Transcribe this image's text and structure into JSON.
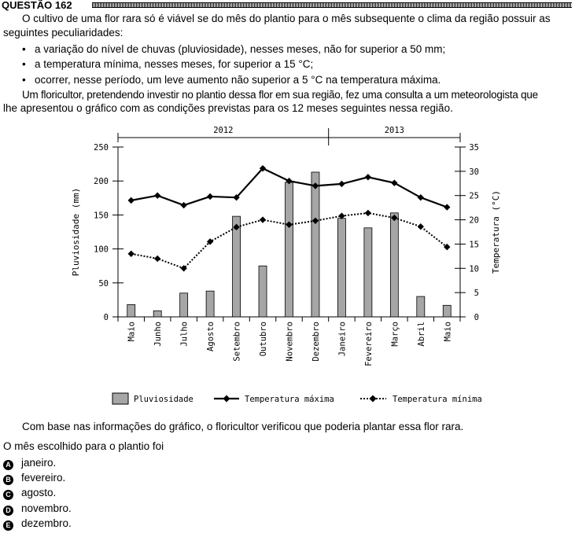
{
  "question": {
    "number": "QUESTÃO 162",
    "intro_line1": "O cultivo de uma flor rara só é viável se do mês do plantio para o mês subsequente o clima da região possuir as",
    "intro_line2": "seguintes peculiaridades:",
    "bullets": [
      "a variação do nível de chuvas (pluviosidade), nesses meses, não for superior a 50 mm;",
      "a temperatura mínima, nesses meses, for superior a 15 °C;",
      "ocorrer, nesse período, um leve aumento não superior a 5 °C na temperatura máxima."
    ],
    "para2_line1": "Um floricultor, pretendendo investir no plantio dessa flor em sua região, fez uma consulta a um meteorologista que",
    "para2_line2": "lhe apresentou o gráfico com as condições previstas para os 12 meses seguintes nessa região.",
    "conclusion": "Com base nas informações do gráfico, o floricultor verificou que poderia plantar essa flor rara.",
    "prompt": "O mês escolhido para o plantio foi",
    "options": [
      {
        "letter": "A",
        "text": "janeiro."
      },
      {
        "letter": "B",
        "text": "fevereiro."
      },
      {
        "letter": "C",
        "text": "agosto."
      },
      {
        "letter": "D",
        "text": "novembro."
      },
      {
        "letter": "E",
        "text": "dezembro."
      }
    ]
  },
  "chart_data": {
    "type": "bar",
    "categories": [
      "Maio",
      "Junho",
      "Julho",
      "Agosto",
      "Setembro",
      "Outubro",
      "Novembro",
      "Dezembro",
      "Janeiro",
      "Fevereiro",
      "Março",
      "Abril",
      "Maio"
    ],
    "year_labels": [
      "2012",
      "2013"
    ],
    "ylabel_left": "Pluviosidade (mm)",
    "ylabel_right": "Temperatura (°C)",
    "ylim_left": [
      0,
      250
    ],
    "ylim_right": [
      0,
      35
    ],
    "yticks_left": [
      "0",
      "50",
      "100",
      "150",
      "200",
      "250"
    ],
    "yticks_right": [
      "0",
      "5",
      "10",
      "15",
      "20",
      "25",
      "30",
      "35"
    ],
    "series": [
      {
        "name": "Pluviosidade",
        "kind": "bar",
        "axis": "left",
        "values": [
          18,
          9,
          35,
          38,
          148,
          75,
          198,
          213,
          145,
          131,
          153,
          30,
          17
        ]
      },
      {
        "name": "Temperatura máxima",
        "kind": "line",
        "axis": "right",
        "values": [
          24,
          25,
          23,
          24.8,
          24.6,
          30.6,
          28,
          27,
          27.4,
          28.8,
          27.6,
          24.6,
          22.6
        ]
      },
      {
        "name": "Temperatura mínima",
        "kind": "dotted-line",
        "axis": "right",
        "values": [
          13,
          12,
          10,
          15.5,
          18.5,
          20,
          19,
          19.8,
          20.8,
          21.4,
          20.4,
          18.6,
          14.4
        ]
      }
    ],
    "legend_position": "bottom",
    "colors": {
      "bar": "#a6a6a6",
      "line": "#000000"
    }
  }
}
